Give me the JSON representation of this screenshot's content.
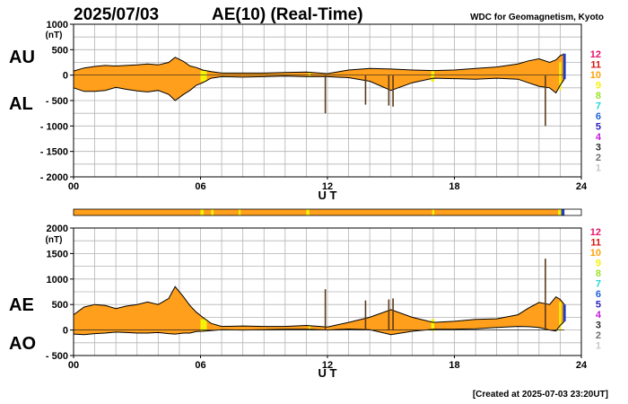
{
  "header": {
    "date": "2025/07/03",
    "title": "AE(10) (Real-Time)",
    "source": "WDC for Geomagnetism, Kyoto"
  },
  "footer": {
    "created": "[Created at 2025-07-03 23:20UT]"
  },
  "colors": {
    "fill": "#ff9f1c",
    "yellow": "#f4f20a",
    "blue": "#1f3fbf",
    "line": "#000000",
    "stem": "#5a3a1a"
  },
  "chart_data": [
    {
      "type": "area",
      "panel": "AU/AL",
      "xlabel": "U T",
      "unit": "(nT)",
      "series_labels": [
        "AU",
        "AL"
      ],
      "xlim": [
        0,
        24
      ],
      "ylim": [
        -2000,
        1000
      ],
      "xticks": [
        0,
        6,
        12,
        18,
        24
      ],
      "xtick_labels": [
        "00",
        "06",
        "12",
        "18",
        "24"
      ],
      "yticks": [
        1000,
        500,
        0,
        -500,
        -1000,
        -1500,
        -2000
      ],
      "ytick_labels": [
        "1000",
        "500",
        "0",
        "- 500",
        "- 1000",
        "- 1500",
        "- 2000"
      ],
      "grid": true,
      "upper": {
        "name": "AU",
        "x": [
          0,
          0.5,
          1,
          1.5,
          2,
          2.5,
          3,
          3.5,
          4,
          4.5,
          4.8,
          5.2,
          5.5,
          5.8,
          6.1,
          6.5,
          7,
          8,
          9,
          10,
          11,
          12,
          13,
          14,
          15,
          16,
          17,
          18,
          19,
          20,
          21,
          21.5,
          22,
          22.5,
          22.8,
          23,
          23.2
        ],
        "y": [
          80,
          140,
          170,
          190,
          180,
          190,
          200,
          220,
          200,
          250,
          350,
          270,
          180,
          150,
          100,
          70,
          40,
          40,
          40,
          50,
          60,
          30,
          100,
          130,
          120,
          100,
          90,
          100,
          130,
          160,
          220,
          280,
          320,
          250,
          300,
          380,
          420
        ]
      },
      "lower": {
        "name": "AL",
        "x": [
          0,
          0.5,
          1,
          1.5,
          2,
          2.5,
          3,
          3.5,
          4,
          4.5,
          4.8,
          5.2,
          5.5,
          5.8,
          6.1,
          6.5,
          7,
          8,
          9,
          10,
          11,
          12,
          13,
          14,
          15,
          16,
          17,
          18,
          19,
          20,
          21,
          21.5,
          22,
          22.5,
          22.8,
          23,
          23.2
        ],
        "y": [
          -250,
          -320,
          -320,
          -300,
          -240,
          -280,
          -310,
          -330,
          -300,
          -380,
          -500,
          -380,
          -300,
          -200,
          -150,
          -60,
          -30,
          -40,
          -30,
          -20,
          -30,
          -30,
          -50,
          -120,
          -300,
          -150,
          -60,
          -70,
          -80,
          -60,
          -80,
          -150,
          -220,
          -250,
          -350,
          -200,
          -80
        ]
      },
      "spikes": [
        {
          "x": 11.9,
          "y": -750
        },
        {
          "x": 13.8,
          "y": -580
        },
        {
          "x": 14.9,
          "y": -600
        },
        {
          "x": 15.1,
          "y": -620
        },
        {
          "x": 22.3,
          "y": -1000
        }
      ],
      "yellow_bands": [
        [
          6.0,
          6.3
        ],
        [
          11.1,
          11.2
        ],
        [
          16.9,
          17.05
        ],
        [
          22.95,
          23.05
        ]
      ]
    },
    {
      "type": "area",
      "panel": "AE/AO",
      "xlabel": "U T",
      "unit": "(nT)",
      "series_labels": [
        "AE",
        "AO"
      ],
      "xlim": [
        0,
        24
      ],
      "ylim": [
        -500,
        2000
      ],
      "xticks": [
        0,
        6,
        12,
        18,
        24
      ],
      "xtick_labels": [
        "00",
        "06",
        "12",
        "18",
        "24"
      ],
      "yticks": [
        2000,
        1500,
        1000,
        500,
        0,
        -500
      ],
      "ytick_labels": [
        "2000",
        "1500",
        "1000",
        "500",
        "0",
        "- 500"
      ],
      "grid": true,
      "upper": {
        "name": "AE",
        "x": [
          0,
          0.5,
          1,
          1.5,
          2,
          2.5,
          3,
          3.5,
          4,
          4.5,
          4.8,
          5.2,
          5.5,
          5.8,
          6.1,
          6.5,
          7,
          8,
          9,
          10,
          11,
          12,
          13,
          14,
          15,
          16,
          17,
          18,
          19,
          20,
          21,
          21.5,
          22,
          22.5,
          22.8,
          23,
          23.2
        ],
        "y": [
          300,
          450,
          500,
          480,
          420,
          470,
          500,
          550,
          500,
          620,
          850,
          650,
          480,
          350,
          250,
          130,
          70,
          80,
          70,
          70,
          90,
          60,
          150,
          250,
          400,
          250,
          150,
          170,
          210,
          220,
          300,
          430,
          540,
          500,
          650,
          600,
          500
        ]
      },
      "lower": {
        "name": "AO",
        "x": [
          0,
          0.5,
          1,
          1.5,
          2,
          2.5,
          3,
          3.5,
          4,
          4.5,
          4.8,
          5.2,
          5.5,
          5.8,
          6.1,
          6.5,
          7,
          8,
          9,
          10,
          11,
          12,
          13,
          14,
          15,
          16,
          17,
          18,
          19,
          20,
          21,
          21.5,
          22,
          22.5,
          22.8,
          23,
          23.2
        ],
        "y": [
          -80,
          -90,
          -70,
          -60,
          -40,
          -50,
          -60,
          -60,
          -50,
          -70,
          -80,
          -60,
          -60,
          -30,
          -25,
          -10,
          5,
          0,
          5,
          15,
          15,
          0,
          20,
          5,
          -90,
          -25,
          15,
          15,
          25,
          50,
          70,
          65,
          50,
          0,
          -20,
          90,
          170
        ]
      },
      "spikes": [
        {
          "x": 11.9,
          "y": 800
        },
        {
          "x": 13.8,
          "y": 580
        },
        {
          "x": 14.9,
          "y": 600
        },
        {
          "x": 15.1,
          "y": 620
        },
        {
          "x": 22.3,
          "y": 1400
        }
      ],
      "yellow_bands": [
        [
          6.0,
          6.3
        ],
        [
          11.1,
          11.2
        ],
        [
          16.9,
          17.05
        ],
        [
          22.95,
          23.05
        ]
      ]
    }
  ],
  "status_bar": {
    "xlim": [
      0,
      24
    ],
    "base_color": "#ff9f1c",
    "segments": [
      {
        "start": 6.0,
        "end": 6.15,
        "color": "#f4f20a"
      },
      {
        "start": 6.5,
        "end": 6.62,
        "color": "#f4f20a"
      },
      {
        "start": 7.8,
        "end": 7.9,
        "color": "#f4f20a"
      },
      {
        "start": 11.0,
        "end": 11.15,
        "color": "#f4f20a"
      },
      {
        "start": 16.95,
        "end": 17.05,
        "color": "#f4f20a"
      },
      {
        "start": 22.9,
        "end": 23.05,
        "color": "#f4f20a"
      },
      {
        "start": 23.05,
        "end": 23.2,
        "color": "#1f3fbf"
      }
    ],
    "end": 23.2
  },
  "station_legend": {
    "labels": [
      "12",
      "11",
      "10",
      "9",
      "8",
      "7",
      "6",
      "5",
      "4",
      "3",
      "2",
      "1"
    ],
    "colors": [
      "#e8136b",
      "#d4160f",
      "#ffa20a",
      "#f4f20a",
      "#9be22a",
      "#20d8d8",
      "#1f62d8",
      "#2a1fbf",
      "#c41fd8",
      "#303030",
      "#707070",
      "#c8c8c8"
    ]
  }
}
